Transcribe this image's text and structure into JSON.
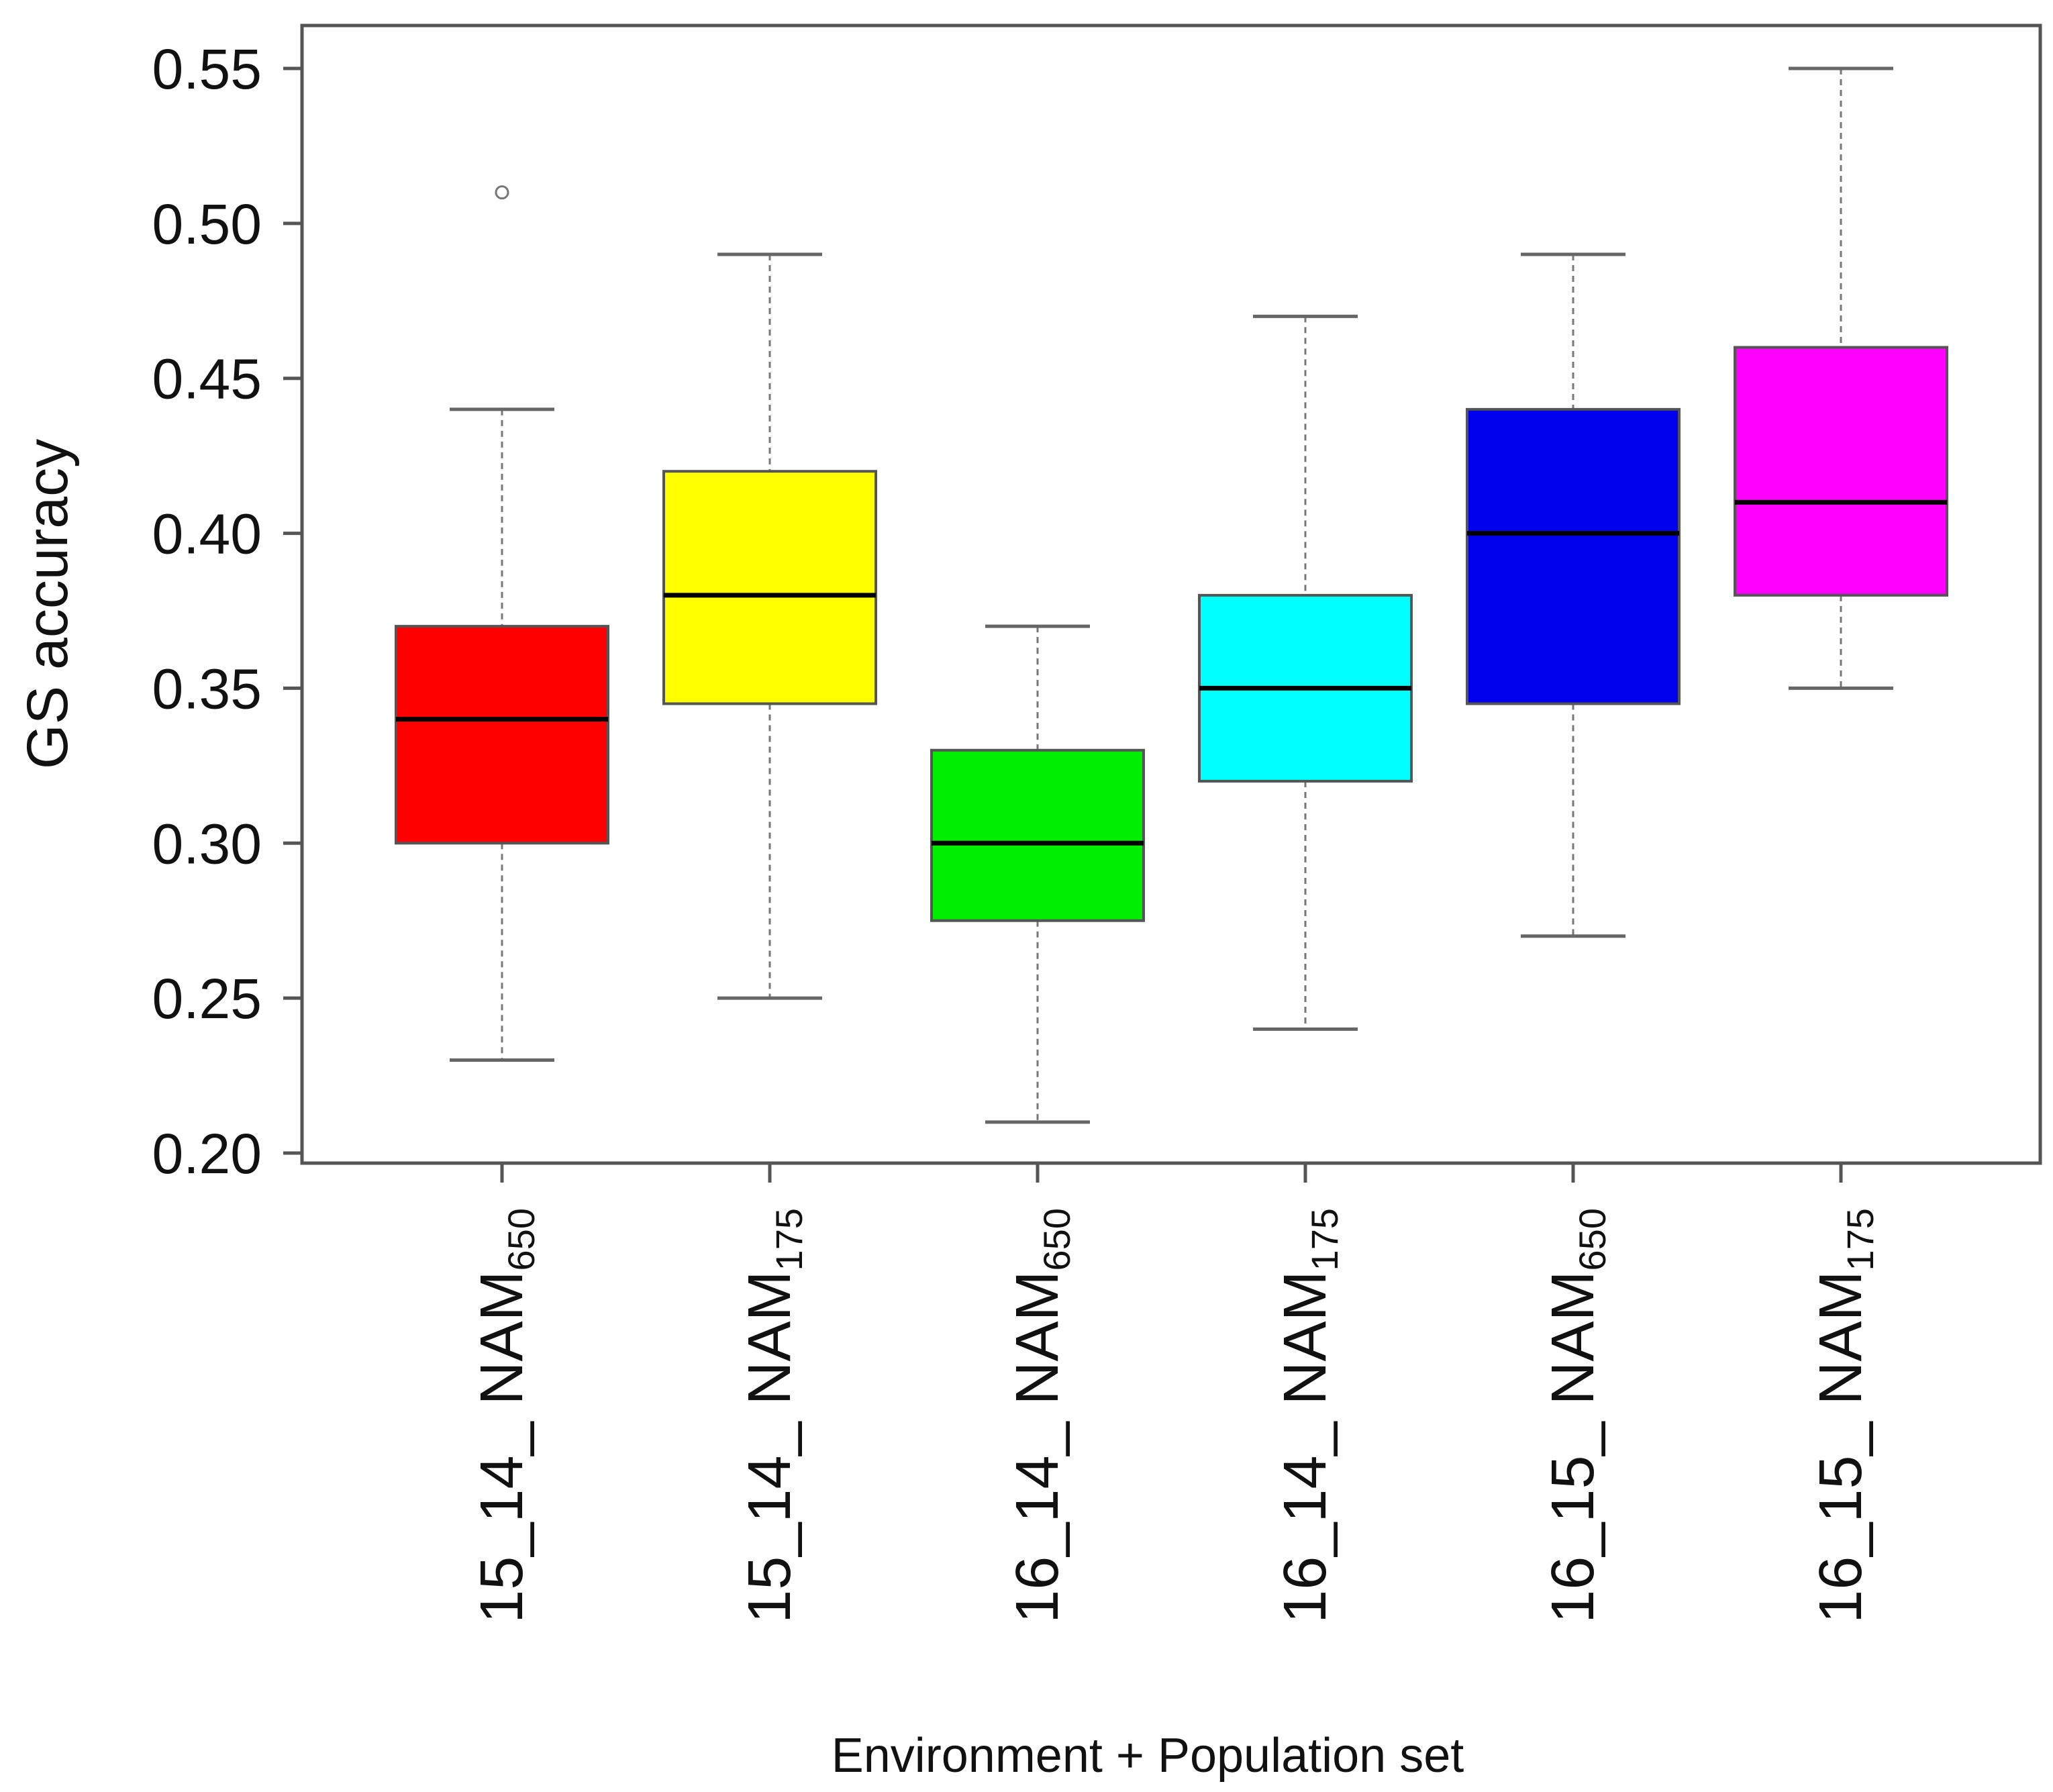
{
  "chart_data": {
    "type": "boxplot",
    "title": "",
    "xlabel": "Environment + Population set",
    "ylabel": "GS accuracy",
    "ylim": [
      0.2,
      0.56
    ],
    "yticks": [
      "0.20",
      "0.25",
      "0.30",
      "0.35",
      "0.40",
      "0.45",
      "0.50",
      "0.55"
    ],
    "ytick_values": [
      0.2,
      0.25,
      0.3,
      0.35,
      0.4,
      0.45,
      0.5,
      0.55
    ],
    "grid": false,
    "legend": "none",
    "categories": [
      {
        "base": "15_14_ NAM",
        "sub": "650"
      },
      {
        "base": "15_14_ NAM",
        "sub": "175"
      },
      {
        "base": "16_14_ NAM",
        "sub": "650"
      },
      {
        "base": "16_14_ NAM",
        "sub": "175"
      },
      {
        "base": "16_15_ NAM",
        "sub": "650"
      },
      {
        "base": "16_15_ NAM",
        "sub": "175"
      }
    ],
    "boxes": [
      {
        "whisker_low": 0.23,
        "q1": 0.3,
        "median": 0.34,
        "q3": 0.37,
        "whisker_high": 0.44,
        "outliers": [
          0.51
        ],
        "color": "#ff0000"
      },
      {
        "whisker_low": 0.25,
        "q1": 0.345,
        "median": 0.38,
        "q3": 0.42,
        "whisker_high": 0.49,
        "outliers": [],
        "color": "#ffff00"
      },
      {
        "whisker_low": 0.21,
        "q1": 0.275,
        "median": 0.3,
        "q3": 0.33,
        "whisker_high": 0.37,
        "outliers": [],
        "color": "#00ee00"
      },
      {
        "whisker_low": 0.24,
        "q1": 0.32,
        "median": 0.35,
        "q3": 0.38,
        "whisker_high": 0.47,
        "outliers": [],
        "color": "#00ffff"
      },
      {
        "whisker_low": 0.27,
        "q1": 0.345,
        "median": 0.4,
        "q3": 0.44,
        "whisker_high": 0.49,
        "outliers": [],
        "color": "#0000ee"
      },
      {
        "whisker_low": 0.35,
        "q1": 0.38,
        "median": 0.41,
        "q3": 0.46,
        "whisker_high": 0.55,
        "outliers": [],
        "color": "#ff00ff"
      }
    ]
  }
}
